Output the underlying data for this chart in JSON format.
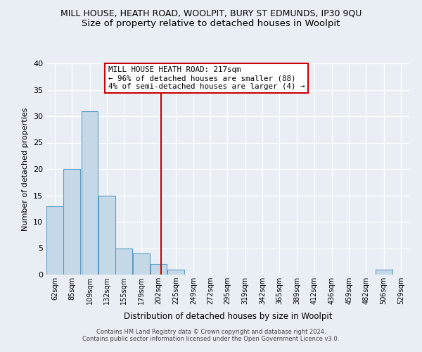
{
  "title": "MILL HOUSE, HEATH ROAD, WOOLPIT, BURY ST EDMUNDS, IP30 9QU",
  "subtitle": "Size of property relative to detached houses in Woolpit",
  "xlabel": "Distribution of detached houses by size in Woolpit",
  "ylabel": "Number of detached properties",
  "bin_labels": [
    "62sqm",
    "85sqm",
    "109sqm",
    "132sqm",
    "155sqm",
    "179sqm",
    "202sqm",
    "225sqm",
    "249sqm",
    "272sqm",
    "295sqm",
    "319sqm",
    "342sqm",
    "365sqm",
    "389sqm",
    "412sqm",
    "436sqm",
    "459sqm",
    "482sqm",
    "506sqm",
    "529sqm"
  ],
  "bin_edges": [
    62,
    85,
    109,
    132,
    155,
    179,
    202,
    225,
    249,
    272,
    295,
    319,
    342,
    365,
    389,
    412,
    436,
    459,
    482,
    506,
    529
  ],
  "bin_width": 23,
  "counts": [
    13,
    20,
    31,
    15,
    5,
    4,
    2,
    1,
    0,
    0,
    0,
    0,
    0,
    0,
    0,
    0,
    0,
    0,
    0,
    1,
    0
  ],
  "bar_color": "#c5d8e8",
  "bar_edge_color": "#5a9cc5",
  "vline_x": 217,
  "vline_color": "#cc0000",
  "annotation_line1": "MILL HOUSE HEATH ROAD: 217sqm",
  "annotation_line2": "← 96% of detached houses are smaller (88)",
  "annotation_line3": "4% of semi-detached houses are larger (4) →",
  "annotation_box_color": "#ffffff",
  "annotation_box_edge_color": "#cc0000",
  "ylim": [
    0,
    40
  ],
  "yticks": [
    0,
    5,
    10,
    15,
    20,
    25,
    30,
    35,
    40
  ],
  "xlim_min": 62,
  "xlim_max": 552,
  "bg_color": "#e8eef4",
  "plot_bg_color": "#e8eef4",
  "footer_line1": "Contains HM Land Registry data © Crown copyright and database right 2024.",
  "footer_line2": "Contains public sector information licensed under the Open Government Licence v3.0.",
  "title_fontsize": 9,
  "subtitle_fontsize": 9.5,
  "annotation_fontsize": 7.8,
  "axis_label_fontsize": 8,
  "tick_fontsize": 7,
  "footer_fontsize": 6
}
